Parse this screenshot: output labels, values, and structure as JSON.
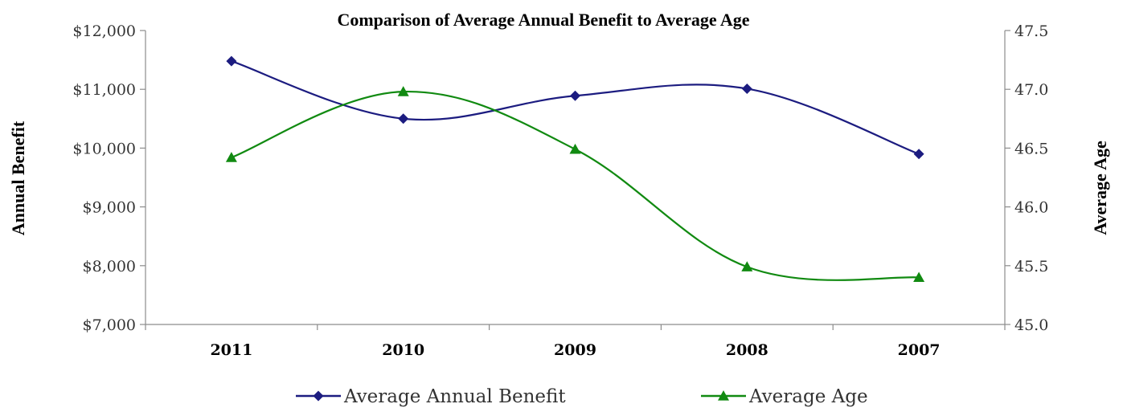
{
  "chart_data": {
    "type": "line",
    "title": "Comparison of Average Annual Benefit to Average Age",
    "categories": [
      "2011",
      "2010",
      "2009",
      "2008",
      "2007"
    ],
    "y_left": {
      "label": "Annual Benefit",
      "range": [
        7000,
        12000
      ],
      "ticks": [
        7000,
        8000,
        9000,
        10000,
        11000,
        12000
      ],
      "tick_labels": [
        "$7,000",
        "$8,000",
        "$9,000",
        "$10,000",
        "$11,000",
        "$12,000"
      ]
    },
    "y_right": {
      "label": "Average Age",
      "range": [
        45.0,
        47.5
      ],
      "ticks": [
        45.0,
        45.5,
        46.0,
        46.5,
        47.0,
        47.5
      ],
      "tick_labels": [
        "45.0",
        "45.5",
        "46.0",
        "46.5",
        "47.0",
        "47.5"
      ]
    },
    "series": [
      {
        "name": "Average Annual Benefit",
        "axis": "left",
        "marker": "diamond",
        "color": "#1c1c80",
        "values": [
          11480,
          10500,
          10890,
          11010,
          9900
        ]
      },
      {
        "name": "Average Age",
        "axis": "right",
        "marker": "triangle",
        "color": "#118a11",
        "values": [
          46.42,
          46.98,
          46.49,
          45.49,
          45.4
        ]
      }
    ],
    "grid": false,
    "smoothed": true,
    "legend_position": "bottom"
  }
}
